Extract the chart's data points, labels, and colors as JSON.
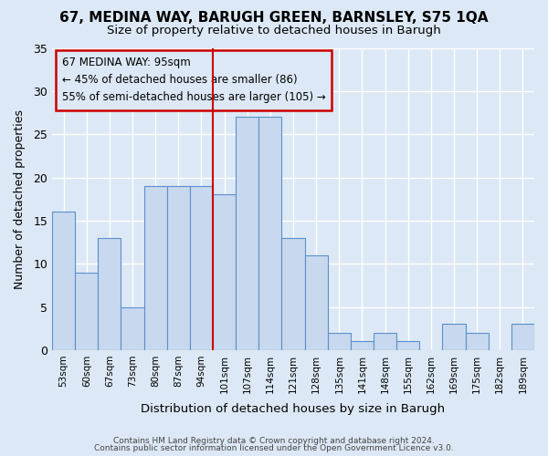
{
  "title1": "67, MEDINA WAY, BARUGH GREEN, BARNSLEY, S75 1QA",
  "title2": "Size of property relative to detached houses in Barugh",
  "xlabel": "Distribution of detached houses by size in Barugh",
  "ylabel": "Number of detached properties",
  "categories": [
    "53sqm",
    "60sqm",
    "67sqm",
    "73sqm",
    "80sqm",
    "87sqm",
    "94sqm",
    "101sqm",
    "107sqm",
    "114sqm",
    "121sqm",
    "128sqm",
    "135sqm",
    "141sqm",
    "148sqm",
    "155sqm",
    "162sqm",
    "169sqm",
    "175sqm",
    "182sqm",
    "189sqm"
  ],
  "values": [
    16,
    9,
    13,
    5,
    19,
    19,
    19,
    18,
    27,
    27,
    13,
    11,
    2,
    1,
    2,
    1,
    0,
    3,
    2,
    0,
    3
  ],
  "bar_color": "#c8d8ee",
  "bar_edge_color": "#5a90cc",
  "vline_color": "#cc0000",
  "vline_index": 6.5,
  "annotation_text": "67 MEDINA WAY: 95sqm\n← 45% of detached houses are smaller (86)\n55% of semi-detached houses are larger (105) →",
  "annotation_box_color": "#cc0000",
  "ylim": [
    0,
    35
  ],
  "yticks": [
    0,
    5,
    10,
    15,
    20,
    25,
    30,
    35
  ],
  "footer1": "Contains HM Land Registry data © Crown copyright and database right 2024.",
  "footer2": "Contains public sector information licensed under the Open Government Licence v3.0.",
  "bg_color": "#dce8f5",
  "plot_bg_color": "#dce8f5",
  "grid_color": "#ffffff",
  "title_fontsize": 11,
  "subtitle_fontsize": 9.5
}
